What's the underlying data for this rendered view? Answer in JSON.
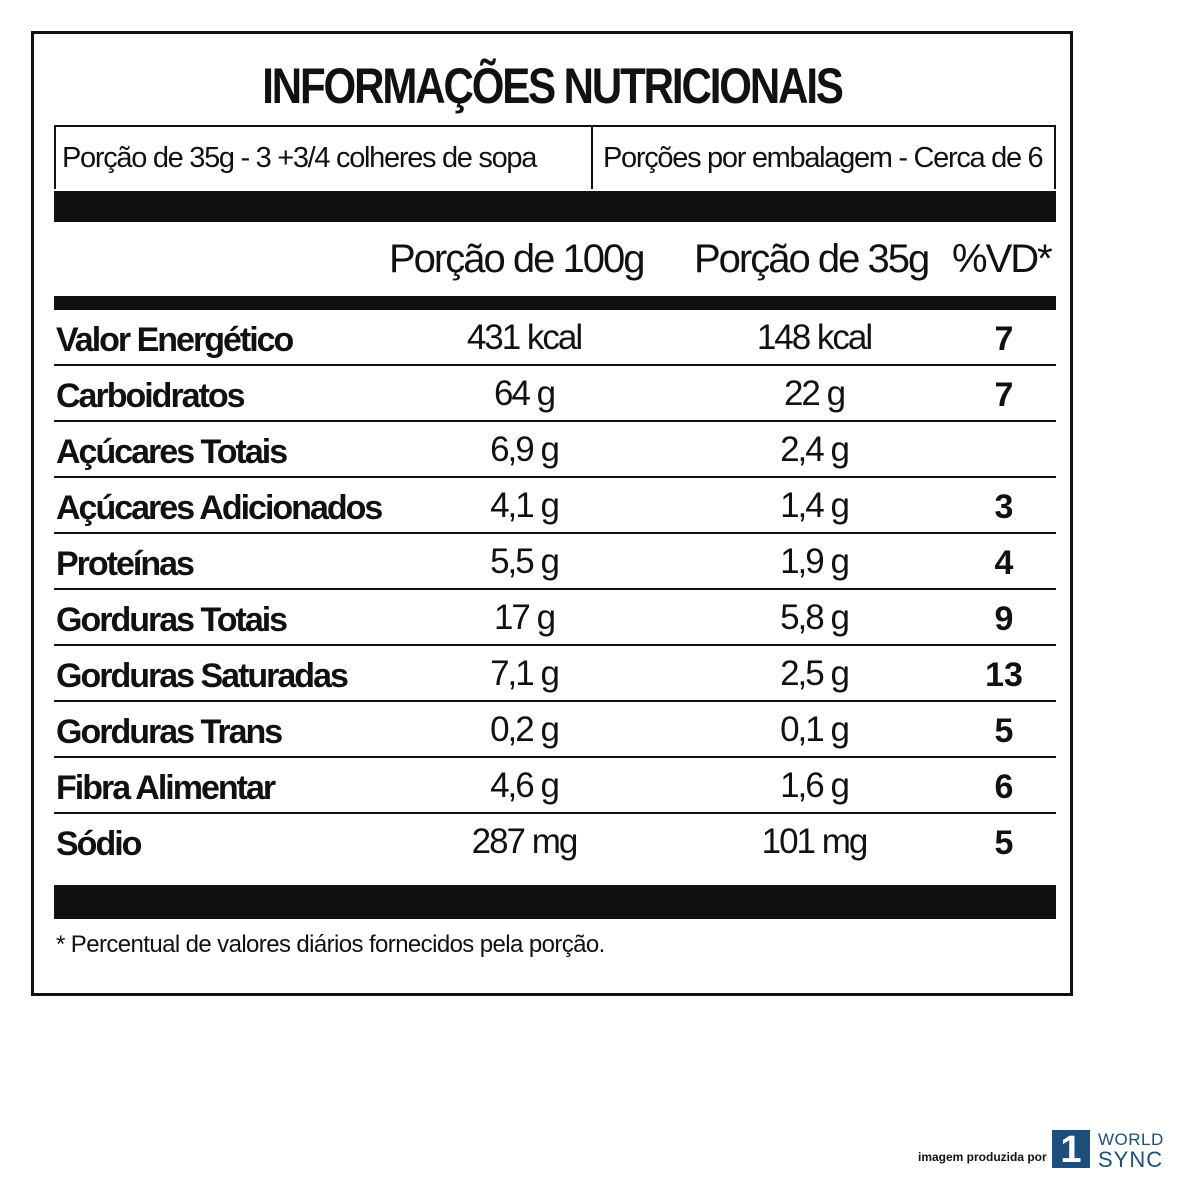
{
  "title": "INFORMAÇÕES NUTRICIONAIS",
  "portion": {
    "left": "Porção de 35g  - 3 +3/4 colheres de sopa",
    "right": "Porções por embalagem - Cerca de 6"
  },
  "columns": {
    "per100": "Porção de 100g",
    "per35": "Porção de 35g",
    "vd": "%VD*"
  },
  "rows": [
    {
      "name": "Valor Energético",
      "per100": "431 kcal",
      "per35": "148 kcal",
      "vd": "7"
    },
    {
      "name": "Carboidratos",
      "per100": "64 g",
      "per35": "22 g",
      "vd": "7"
    },
    {
      "name": "Açúcares Totais",
      "per100": "6,9 g",
      "per35": "2,4 g",
      "vd": ""
    },
    {
      "name": "Açúcares Adicionados",
      "per100": "4,1 g",
      "per35": "1,4 g",
      "vd": "3"
    },
    {
      "name": "Proteínas",
      "per100": "5,5 g",
      "per35": "1,9 g",
      "vd": "4"
    },
    {
      "name": "Gorduras Totais",
      "per100": "17 g",
      "per35": "5,8 g",
      "vd": "9"
    },
    {
      "name": "Gorduras Saturadas",
      "per100": "7,1 g",
      "per35": "2,5 g",
      "vd": "13"
    },
    {
      "name": "Gorduras Trans",
      "per100": "0,2 g",
      "per35": "0,1 g",
      "vd": "5"
    },
    {
      "name": "Fibra Alimentar",
      "per100": "4,6 g",
      "per35": "1,6 g",
      "vd": "6"
    },
    {
      "name": "Sódio",
      "per100": "287 mg",
      "per35": "101 mg",
      "vd": "5"
    }
  ],
  "footnote": "* Percentual de valores diários fornecidos pela porção.",
  "credit": {
    "text": "imagem produzida por",
    "logo_mark": "1",
    "logo_top": "WORLD",
    "logo_bottom": "SYNC",
    "logo_color": "#1d4f7c"
  }
}
